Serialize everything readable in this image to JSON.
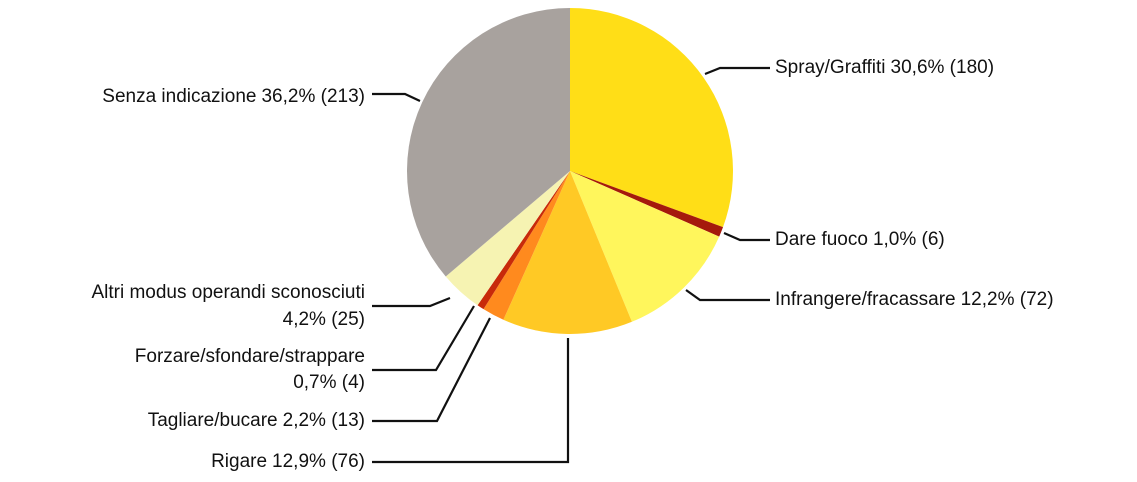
{
  "chart_data": {
    "type": "pie",
    "categories": [
      "Spray/Graffiti",
      "Dare fuoco",
      "Infrangere/fracassare",
      "Rigare",
      "Tagliare/bucare",
      "Forzare/sfondare/strappare",
      "Altri modus operandi sconosciuti",
      "Senza indicazione"
    ],
    "values": [
      30.6,
      1.0,
      12.2,
      12.9,
      2.2,
      0.7,
      4.2,
      36.2
    ],
    "value_labels": [
      "30,6% (180)",
      "1,0% (6)",
      "12,2% (72)",
      "12,9% (76)",
      "2,2% (13)",
      "0,7% (4)",
      "4,2% (25)",
      "36,2% (213)"
    ],
    "colors": [
      "#FFDE17",
      "#A51A0C",
      "#FFF65C",
      "#FFC925",
      "#FF8A1E",
      "#C82A0A",
      "#F6F3B2",
      "#A8A29E"
    ]
  }
}
